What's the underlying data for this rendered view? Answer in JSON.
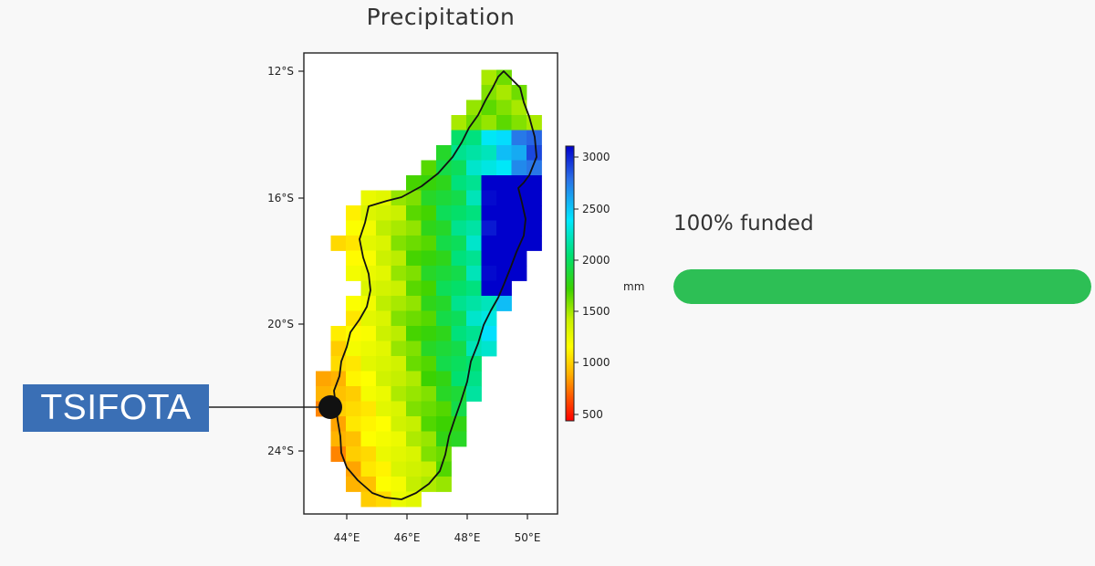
{
  "map": {
    "title": "Precipitation",
    "lat_ticks": [
      "12°S",
      "16°S",
      "20°S",
      "24°S"
    ],
    "lon_ticks": [
      "44°E",
      "46°E",
      "48°E",
      "50°E"
    ],
    "colorbar": {
      "unit": "mm",
      "ticks": [
        "3000",
        "2500",
        "2000",
        "1500",
        "1000",
        "500"
      ],
      "colors": [
        "#0000cc",
        "#2a6fe6",
        "#00e8ff",
        "#00e070",
        "#3cd200",
        "#c8f000",
        "#ffff00",
        "#ffb000",
        "#ff5000",
        "#ff0000"
      ]
    },
    "location": {
      "name": "TSIFOTA"
    }
  },
  "funding": {
    "label": "100% funded",
    "progress": 1.0,
    "bar_color": "#2dbf55"
  }
}
